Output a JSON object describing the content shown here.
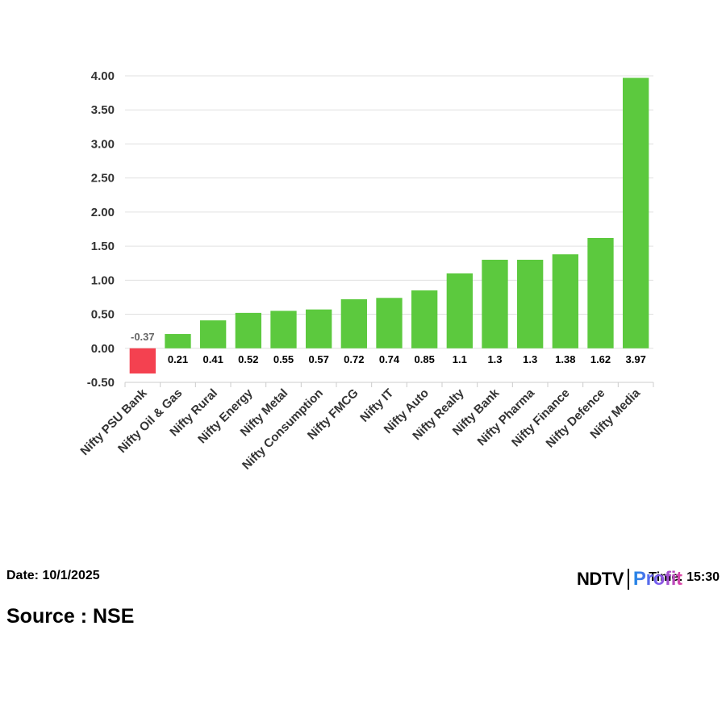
{
  "chart_data": {
    "type": "bar",
    "categories": [
      "Nifty PSU Bank",
      "Nifty Oil & Gas",
      "Nifty Rural",
      "Nifty Energy",
      "Nifty Metal",
      "Nifty Consumption",
      "Nifty FMCG",
      "Nifty IT",
      "Nifty Auto",
      "Nifty Realty",
      "Nifty Bank",
      "Nifty Pharma",
      "Nifty Finance",
      "Nifty Defence",
      "Nifty Media"
    ],
    "values": [
      -0.37,
      0.21,
      0.41,
      0.52,
      0.55,
      0.57,
      0.72,
      0.74,
      0.85,
      1.1,
      1.3,
      1.3,
      1.38,
      1.62,
      3.97
    ],
    "value_labels": [
      "-0.37",
      "0.21",
      "0.41",
      "0.52",
      "0.55",
      "0.57",
      "0.72",
      "0.74",
      "0.85",
      "1.1",
      "1.3",
      "1.3",
      "1.38",
      "1.62",
      "3.97"
    ],
    "yticks": [
      "4.00",
      "3.50",
      "3.00",
      "2.50",
      "2.00",
      "1.50",
      "1.00",
      "0.50",
      "0.00",
      "-0.50"
    ],
    "ylim": [
      -0.5,
      4.0
    ],
    "grid": true,
    "legend": "none",
    "colors": {
      "positive": "#5cc93e",
      "negative": "#f44150"
    }
  },
  "footer": {
    "date": "Date: 10/1/2025",
    "source": "Source : NSE",
    "time": "Time: 15:30"
  },
  "logo": {
    "ndtv": "NDTV",
    "profit": "Profit"
  }
}
